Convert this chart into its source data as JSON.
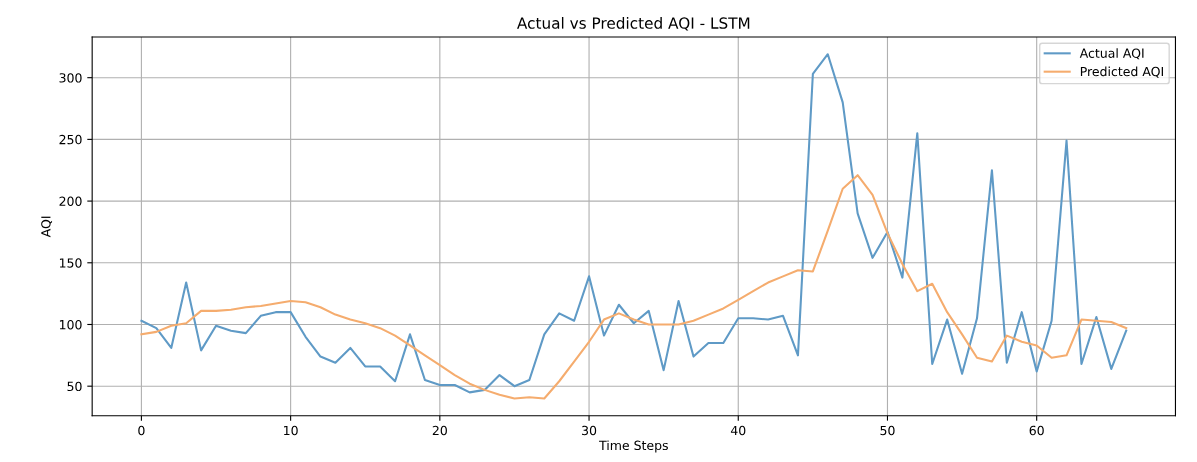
{
  "chart_data": {
    "type": "line",
    "title": "Actual vs Predicted AQI - LSTM",
    "xlabel": "Time Steps",
    "ylabel": "AQI",
    "x": [
      0,
      1,
      2,
      3,
      4,
      5,
      6,
      7,
      8,
      9,
      10,
      11,
      12,
      13,
      14,
      15,
      16,
      17,
      18,
      19,
      20,
      21,
      22,
      23,
      24,
      25,
      26,
      27,
      28,
      29,
      30,
      31,
      32,
      33,
      34,
      35,
      36,
      37,
      38,
      39,
      40,
      41,
      42,
      43,
      44,
      45,
      46,
      47,
      48,
      49,
      50,
      51,
      52,
      53,
      54,
      55,
      56,
      57,
      58,
      59,
      60,
      61,
      62,
      63,
      64,
      65,
      66
    ],
    "series": [
      {
        "name": "Actual AQI",
        "color": "#5f9ac6",
        "values": [
          103,
          97,
          81,
          134,
          79,
          99,
          95,
          93,
          107,
          110,
          110,
          90,
          74,
          69,
          81,
          66,
          66,
          54,
          92,
          55,
          51,
          51,
          45,
          47,
          59,
          50,
          55,
          92,
          109,
          103,
          139,
          91,
          116,
          101,
          111,
          63,
          119,
          74,
          85,
          85,
          105,
          105,
          104,
          107,
          75,
          303,
          319,
          280,
          190,
          154,
          175,
          138,
          255,
          68,
          104,
          60,
          105,
          225,
          69,
          110,
          62,
          103,
          249,
          68,
          106,
          64,
          95
        ]
      },
      {
        "name": "Predicted AQI",
        "color": "#f5ac6e",
        "values": [
          92,
          94,
          99,
          101,
          111,
          111,
          112,
          114,
          115,
          117,
          119,
          118,
          114,
          108,
          104,
          101,
          97,
          91,
          83,
          75,
          67,
          59,
          52,
          47,
          43,
          40,
          41,
          40,
          54,
          70,
          86,
          104,
          109,
          104,
          100,
          100,
          100,
          103,
          108,
          113,
          120,
          127,
          134,
          139,
          144,
          143,
          176,
          210,
          221,
          205,
          174,
          149,
          127,
          133,
          110,
          92,
          73,
          70,
          91,
          86,
          83,
          73,
          75,
          104,
          103,
          102,
          97
        ]
      }
    ],
    "xlim": [
      -3.3,
      69.3
    ],
    "xticks": [
      0,
      10,
      20,
      30,
      40,
      50,
      60
    ],
    "ylim": [
      26,
      333
    ],
    "yticks": [
      50,
      100,
      150,
      200,
      250,
      300
    ],
    "grid": true,
    "legend": "top right"
  }
}
